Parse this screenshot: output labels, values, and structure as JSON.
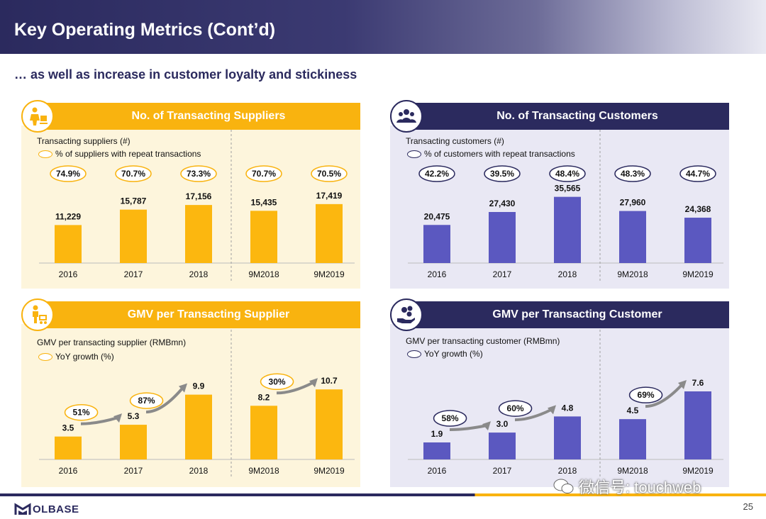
{
  "header": {
    "title": "Key Operating Metrics (Cont’d)"
  },
  "subtitle": "… as well as increase in customer loyalty and stickiness",
  "colors": {
    "navy": "#2b2a5e",
    "gold": "#f9b30f",
    "purple_bar": "#5b58c0",
    "gold_bar": "#fcb70f"
  },
  "panels": {
    "suppliers": {
      "banner": "No. of Transacting Suppliers",
      "icon": "supplier-worker-icon",
      "legend_title": "Transacting suppliers (#)",
      "legend_oval": "% of suppliers with repeat transactions"
    },
    "customers": {
      "banner": "No. of Transacting Customers",
      "icon": "people-group-icon",
      "legend_title": "Transacting customers (#)",
      "legend_oval": "% of customers with repeat transactions"
    },
    "gmv_supplier": {
      "banner": "GMV per Transacting Supplier",
      "icon": "cart-worker-icon",
      "legend_title": "GMV per transacting supplier (RMBmn)",
      "legend_oval": "YoY growth (%)"
    },
    "gmv_customer": {
      "banner": "GMV per Transacting Customer",
      "icon": "money-hand-icon",
      "legend_title": "GMV per transacting customer (RMBmn)",
      "legend_oval": "YoY growth (%)"
    }
  },
  "chart_data": [
    {
      "id": "suppliers",
      "type": "bar",
      "title": "No. of Transacting Suppliers",
      "categories": [
        "2016",
        "2017",
        "2018",
        "9M2018",
        "9M2019"
      ],
      "values": [
        11229,
        15787,
        17156,
        15435,
        17419
      ],
      "value_labels": [
        "11,229",
        "15,787",
        "17,156",
        "15,435",
        "17,419"
      ],
      "repeat_pct": [
        "74.9%",
        "70.7%",
        "73.3%",
        "70.7%",
        "70.5%"
      ],
      "ylim": [
        0,
        22000
      ]
    },
    {
      "id": "customers",
      "type": "bar",
      "title": "No. of Transacting Customers",
      "categories": [
        "2016",
        "2017",
        "2018",
        "9M2018",
        "9M2019"
      ],
      "values": [
        20475,
        27430,
        35565,
        27960,
        24368
      ],
      "value_labels": [
        "20,475",
        "27,430",
        "35,565",
        "27,960",
        "24,368"
      ],
      "repeat_pct": [
        "42.2%",
        "39.5%",
        "48.4%",
        "48.3%",
        "44.7%"
      ],
      "ylim": [
        0,
        40000
      ]
    },
    {
      "id": "gmv_supplier",
      "type": "bar",
      "title": "GMV per Transacting Supplier",
      "categories": [
        "2016",
        "2017",
        "2018",
        "9M2018",
        "9M2019"
      ],
      "values": [
        3.5,
        5.3,
        9.9,
        8.2,
        10.7
      ],
      "value_labels": [
        "3.5",
        "5.3",
        "9.9",
        "8.2",
        "10.7"
      ],
      "growth": [
        {
          "from": 0,
          "label": "51%"
        },
        {
          "from": 1,
          "label": "87%"
        },
        {
          "from": 3,
          "label": "30%"
        }
      ],
      "ylim": [
        0,
        13
      ]
    },
    {
      "id": "gmv_customer",
      "type": "bar",
      "title": "GMV per Transacting Customer",
      "categories": [
        "2016",
        "2017",
        "2018",
        "9M2018",
        "9M2019"
      ],
      "values": [
        1.9,
        3.0,
        4.8,
        4.5,
        7.6
      ],
      "value_labels": [
        "1.9",
        "3.0",
        "4.8",
        "4.5",
        "7.6"
      ],
      "growth": [
        {
          "from": 0,
          "label": "58%"
        },
        {
          "from": 1,
          "label": "60%"
        },
        {
          "from": 3,
          "label": "69%"
        }
      ],
      "ylim": [
        0,
        9.5
      ]
    }
  ],
  "footer": {
    "logo": "OLBASE",
    "page": "25",
    "watermark": "微信号: touchweb"
  }
}
